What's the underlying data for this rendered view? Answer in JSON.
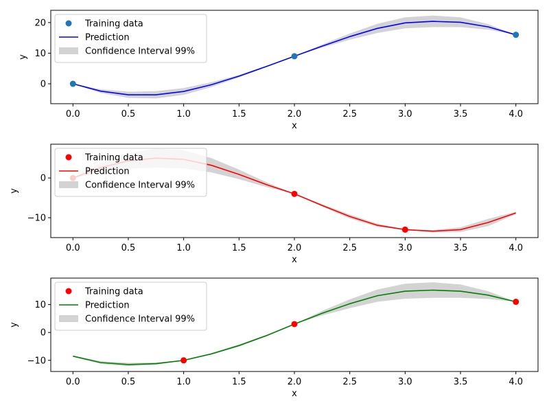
{
  "chart_data": [
    {
      "type": "line",
      "xlabel": "x",
      "ylabel": "y",
      "xlim": [
        -0.2,
        4.2
      ],
      "ylim": [
        -6.5,
        24
      ],
      "xticks": [
        "0.0",
        "0.5",
        "1.0",
        "1.5",
        "2.0",
        "2.5",
        "3.0",
        "3.5",
        "4.0"
      ],
      "yticks": [
        "0",
        "10",
        "20"
      ],
      "grid": false,
      "legend_position": "upper-left",
      "training_data": {
        "name": "Training data",
        "color": "#1f77b4",
        "x": [
          0,
          2,
          4
        ],
        "y": [
          0,
          9,
          16
        ]
      },
      "prediction": {
        "name": "Prediction",
        "color": "#0000ff",
        "x": [
          0,
          0.25,
          0.5,
          0.75,
          1.0,
          1.25,
          1.5,
          1.75,
          2.0,
          2.25,
          2.5,
          2.75,
          3.0,
          3.25,
          3.5,
          3.75,
          4.0
        ],
        "y": [
          0,
          -2.4,
          -3.6,
          -3.6,
          -2.5,
          -0.3,
          2.5,
          5.7,
          9,
          12.3,
          15.4,
          18.1,
          19.9,
          20.4,
          20.1,
          18.6,
          16
        ]
      },
      "confidence_interval": {
        "name": "Confidence Interval 99%",
        "color": "#d3d3d3",
        "half_width": [
          0,
          0.6,
          1.0,
          1.2,
          1.1,
          0.8,
          0.4,
          0.2,
          0,
          0.5,
          1.0,
          1.5,
          1.8,
          1.9,
          1.6,
          0.9,
          0
        ]
      }
    },
    {
      "type": "line",
      "xlabel": "x",
      "ylabel": "y",
      "xlim": [
        -0.2,
        4.2
      ],
      "ylim": [
        -15,
        8.5
      ],
      "xticks": [
        "0.0",
        "0.5",
        "1.0",
        "1.5",
        "2.0",
        "2.5",
        "3.0",
        "3.5",
        "4.0"
      ],
      "yticks": [
        "−10",
        "0"
      ],
      "grid": false,
      "legend_position": "upper-left",
      "training_data": {
        "name": "Training data",
        "color": "#ff0000",
        "x": [
          0,
          2,
          3
        ],
        "y": [
          0,
          -4,
          -13
        ]
      },
      "prediction": {
        "name": "Prediction",
        "color": "#ff0000",
        "x": [
          0,
          0.25,
          0.5,
          0.75,
          1.0,
          1.25,
          1.5,
          1.75,
          2.0,
          2.25,
          2.5,
          2.75,
          3.0,
          3.25,
          3.5,
          3.75,
          4.0
        ],
        "y": [
          0,
          2.6,
          4.3,
          5.0,
          4.7,
          3.2,
          0.9,
          -1.7,
          -4,
          -6.9,
          -9.7,
          -11.9,
          -13,
          -13.4,
          -13.0,
          -11.2,
          -8.8
        ]
      },
      "confidence_interval": {
        "name": "Confidence Interval 99%",
        "color": "#d3d3d3",
        "half_width": [
          0,
          1.2,
          2.0,
          2.4,
          2.3,
          1.8,
          1.2,
          0.6,
          0,
          0.3,
          0.5,
          0.4,
          0,
          0.3,
          0.6,
          0.9,
          0.3
        ]
      }
    },
    {
      "type": "line",
      "xlabel": "x",
      "ylabel": "y",
      "xlim": [
        -0.2,
        4.2
      ],
      "ylim": [
        -14,
        19.5
      ],
      "xticks": [
        "0.0",
        "0.5",
        "1.0",
        "1.5",
        "2.0",
        "2.5",
        "3.0",
        "3.5",
        "4.0"
      ],
      "yticks": [
        "−10",
        "0",
        "10"
      ],
      "grid": false,
      "legend_position": "upper-left",
      "training_data": {
        "name": "Training data",
        "color": "#ff0000",
        "x": [
          1,
          2,
          4
        ],
        "y": [
          -10,
          3,
          11
        ]
      },
      "prediction": {
        "name": "Prediction",
        "color": "#008000",
        "x": [
          0,
          0.25,
          0.5,
          0.75,
          1.0,
          1.25,
          1.5,
          1.75,
          2.0,
          2.25,
          2.5,
          2.75,
          3.0,
          3.25,
          3.5,
          3.75,
          4.0
        ],
        "y": [
          -8.5,
          -10.8,
          -11.5,
          -11.2,
          -10,
          -7.7,
          -4.7,
          -1.1,
          3,
          6.9,
          10.3,
          13.2,
          14.8,
          15.2,
          14.8,
          13.4,
          11
        ]
      },
      "confidence_interval": {
        "name": "Confidence Interval 99%",
        "color": "#d3d3d3",
        "half_width": [
          0.2,
          0.5,
          0.6,
          0.4,
          0,
          0.3,
          0.4,
          0.3,
          0,
          0.8,
          1.6,
          2.2,
          2.7,
          2.8,
          2.4,
          1.4,
          0
        ]
      }
    }
  ]
}
